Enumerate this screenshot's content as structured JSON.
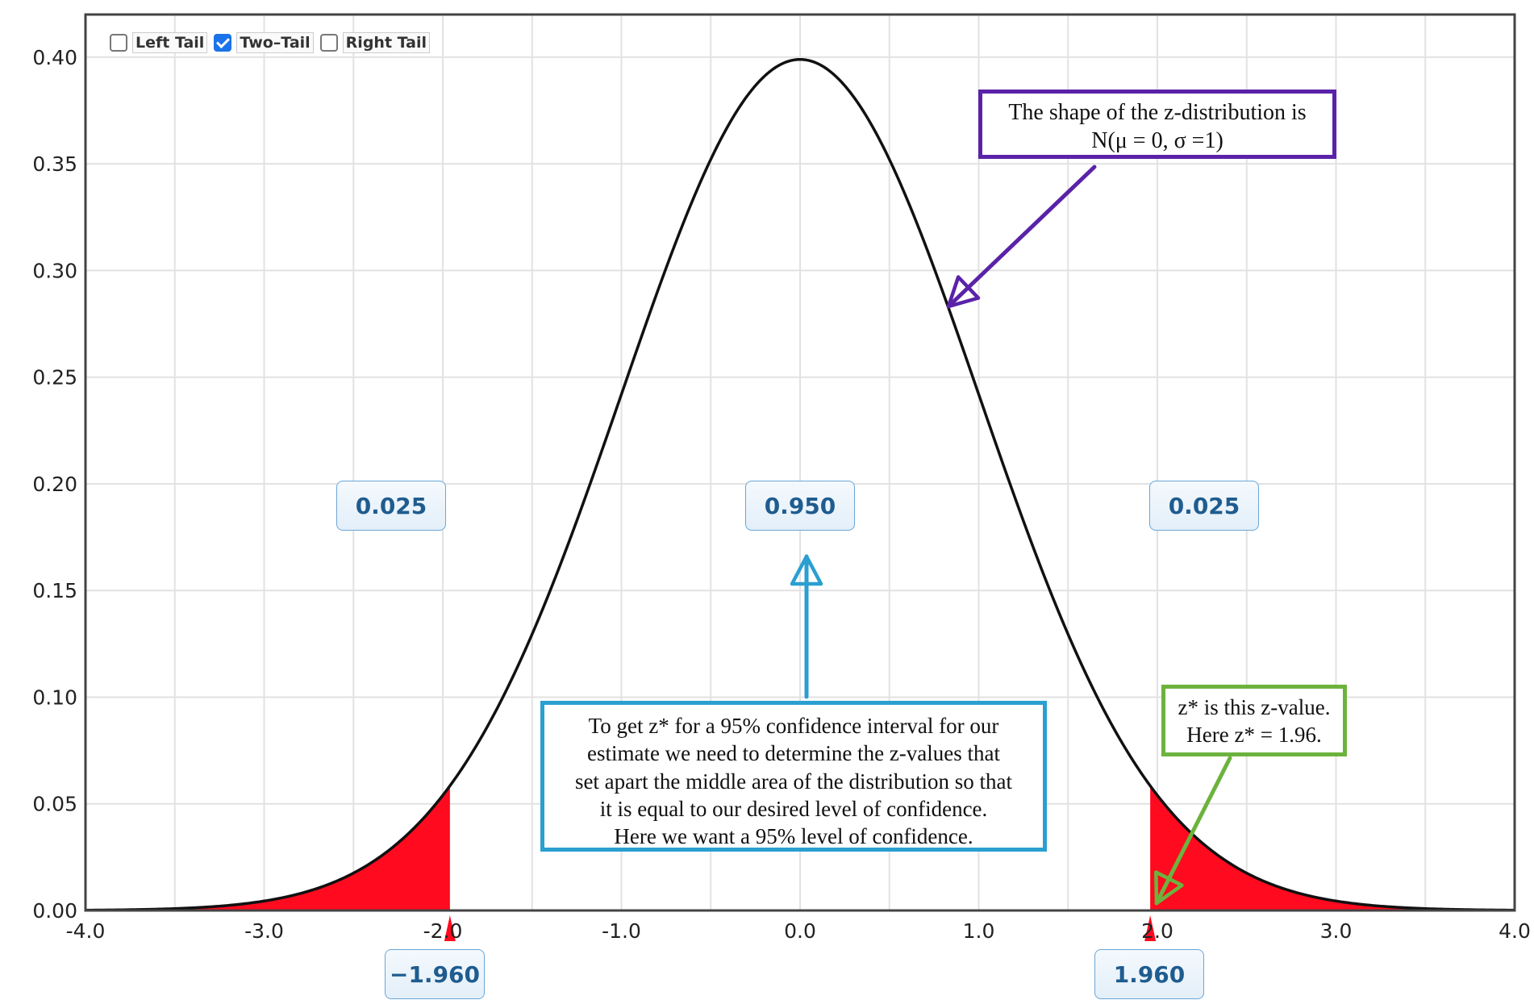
{
  "controls": [
    {
      "label": "Left Tail",
      "checked": false
    },
    {
      "label": "Two–Tail",
      "checked": true
    },
    {
      "label": "Right Tail",
      "checked": false
    }
  ],
  "chart_data": {
    "type": "area",
    "distribution": "standard normal",
    "mu": 0,
    "sigma": 1,
    "xlim": [
      -4.0,
      4.0
    ],
    "ylim": [
      0.0,
      0.42
    ],
    "x_ticks": [
      "-4.0",
      "-3.0",
      "-2.0",
      "-1.0",
      "0.0",
      "1.0",
      "2.0",
      "3.0",
      "4.0"
    ],
    "y_ticks": [
      "0.00",
      "0.05",
      "0.10",
      "0.15",
      "0.20",
      "0.25",
      "0.30",
      "0.35",
      "0.40"
    ],
    "grid": true,
    "critical_values": [
      -1.96,
      1.96
    ],
    "shaded_regions": [
      {
        "from": -4.0,
        "to": -1.96,
        "color": "#ff0a1e"
      },
      {
        "from": 1.96,
        "to": 4.0,
        "color": "#ff0a1e"
      }
    ],
    "area_labels": [
      {
        "text": "0.025",
        "x": -2.3
      },
      {
        "text": "0.950",
        "x": 0.0
      },
      {
        "text": "0.025",
        "x": 2.3
      }
    ],
    "critical_labels": [
      "−1.960",
      "1.960"
    ]
  },
  "annotations": {
    "shape_note": [
      "The shape of the z-distribution is",
      "N(μ = 0, σ =1)"
    ],
    "confidence_note": [
      "To get z* for a 95% confidence interval for our",
      "estimate we need to determine the z-values that",
      "set apart the middle area of the distribution so that",
      "it is equal to our desired level of confidence.",
      "Here we want a 95% level of confidence."
    ],
    "zstar_note": [
      "z* is this z-value.",
      "Here z* = 1.96."
    ]
  },
  "colors": {
    "tail_fill": "#ff0a1e",
    "curve": "#111111",
    "shape_note": "#5a22a8",
    "confidence_note": "#2a9fd0",
    "zstar_note": "#6cb33e",
    "label_text": "#1f5c8f"
  }
}
